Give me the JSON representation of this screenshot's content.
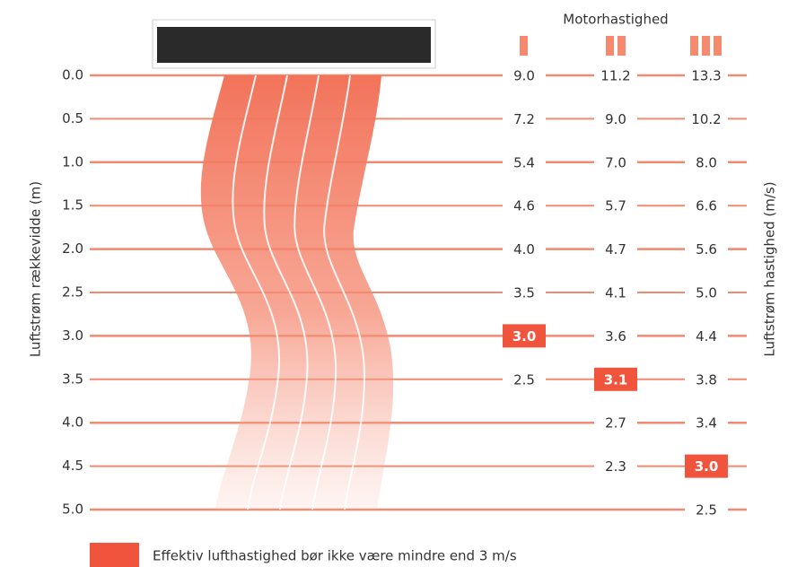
{
  "header": {
    "motor_label": "Motorhastighed"
  },
  "left_axis_label": "Luftstrøm rækkevidde (m)",
  "right_axis_label": "Luftstrøm hastighed (m/s)",
  "distances": [
    "0.0",
    "0.5",
    "1.0",
    "1.5",
    "2.0",
    "2.5",
    "3.0",
    "3.5",
    "4.0",
    "4.5",
    "5.0"
  ],
  "speed_columns": [
    {
      "values": [
        "9.0",
        "7.2",
        "5.4",
        "4.6",
        "4.0",
        "3.5",
        "3.0",
        "2.5"
      ],
      "highlight": 6
    },
    {
      "values": [
        "11.2",
        "9.0",
        "7.0",
        "5.7",
        "4.7",
        "4.1",
        "3.6",
        "3.1",
        "2.7",
        "2.3"
      ],
      "highlight": 7
    },
    {
      "values": [
        "13.3",
        "10.2",
        "8.0",
        "6.6",
        "5.6",
        "5.0",
        "4.4",
        "3.8",
        "3.4",
        "3.0",
        "2.5"
      ],
      "highlight": 9
    }
  ],
  "legend": {
    "text": "Effektiv lufthastighed bør ikke være mindre end 3 m/s"
  }
}
